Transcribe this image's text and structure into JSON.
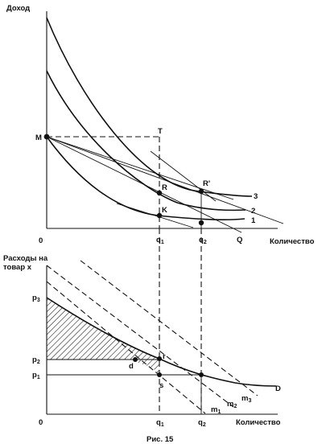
{
  "top_panel": {
    "y_axis_label": "Доход",
    "x_axis_label": "Количество",
    "origin": "0",
    "points": {
      "M": "M",
      "T": "T",
      "R": "R",
      "R_prime": "R'",
      "K": "K"
    },
    "ticks": {
      "q1": "q",
      "q1_sub": "1",
      "q2": "q",
      "q2_sub": "2",
      "Q": "Q"
    },
    "curve_labels": [
      "1",
      "2",
      "3"
    ]
  },
  "bottom_panel": {
    "y_axis_label_line1": "Расходы на",
    "y_axis_label_line2": "товар x",
    "x_axis_label": "Количество",
    "origin": "0",
    "price_ticks": [
      {
        "main": "p",
        "sub": "3"
      },
      {
        "main": "p",
        "sub": "2"
      },
      {
        "main": "p",
        "sub": "1"
      }
    ],
    "points": {
      "d": "d",
      "r": "r",
      "s": "s"
    },
    "ticks": {
      "q1": "q",
      "q1_sub": "1",
      "q2": "q",
      "q2_sub": "2"
    },
    "demand_label": "D",
    "lines": [
      {
        "main": "m",
        "sub": "1"
      },
      {
        "main": "m",
        "sub": "2"
      },
      {
        "main": "m",
        "sub": "3"
      }
    ]
  },
  "caption": "Рис. 15"
}
